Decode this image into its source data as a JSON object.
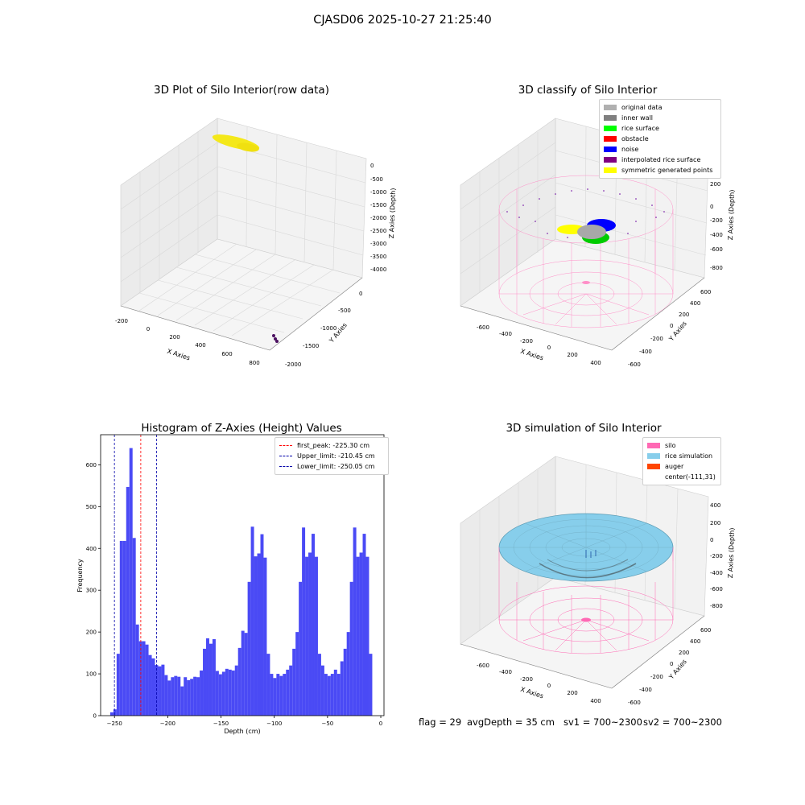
{
  "suptitle": "CJASD06 2025-10-27 21:25:40",
  "panels": {
    "raw": {
      "title": "3D Plot of Silo Interior(row data)",
      "xlabel": "X Axies",
      "ylabel": "Y Axies",
      "zlabel": "Z Axies (Depth)",
      "xticks": [
        "-200",
        "0",
        "200",
        "400",
        "600",
        "800"
      ],
      "yticks": [
        "0",
        "-500",
        "-1000",
        "-1500",
        "-2000"
      ],
      "zticks": [
        "0",
        "-500",
        "-1000",
        "-1500",
        "-2000",
        "-2500",
        "-3000",
        "-3500",
        "-4000"
      ]
    },
    "classify": {
      "title": "3D classify of Silo Interior",
      "xlabel": "X Axies",
      "ylabel": "Y Axies",
      "zlabel": "Z Axies (Depth)",
      "xticks": [
        "-600",
        "-400",
        "-200",
        "0",
        "200",
        "400"
      ],
      "yticks": [
        "600",
        "400",
        "200",
        "0",
        "-200",
        "-400",
        "-600"
      ],
      "zticks": [
        "200",
        "0",
        "-200",
        "-400",
        "-600",
        "-800"
      ],
      "legend": [
        {
          "label": "original data",
          "color": "#b0b0b0"
        },
        {
          "label": "inner wall",
          "color": "#808080"
        },
        {
          "label": "rice surface",
          "color": "#00ff00"
        },
        {
          "label": "obstacle",
          "color": "#ff0000"
        },
        {
          "label": "noise",
          "color": "#0000ff"
        },
        {
          "label": "interpolated rice surface",
          "color": "#800080"
        },
        {
          "label": "symmetric generated points",
          "color": "#ffff00"
        }
      ]
    },
    "simulation": {
      "title": "3D simulation of Silo Interior",
      "xlabel": "X Axies",
      "ylabel": "Y Axies",
      "zlabel": "Z Axies (Depth)",
      "xticks": [
        "-600",
        "-400",
        "-200",
        "0",
        "200",
        "400"
      ],
      "yticks": [
        "600",
        "400",
        "200",
        "0",
        "-200",
        "-400",
        "-600"
      ],
      "zticks": [
        "400",
        "200",
        "0",
        "-200",
        "-400",
        "-600",
        "-800"
      ],
      "legend": [
        {
          "label": "silo",
          "color": "#ff69b4"
        },
        {
          "label": "rice simulation",
          "color": "#87ceeb"
        },
        {
          "label": "auger",
          "color": "#ff4500"
        },
        {
          "label": "center(-111,31)",
          "color": ""
        }
      ]
    }
  },
  "status": {
    "flag": "flag = 29",
    "avg_depth": "avgDepth = 35 cm",
    "sv1": "sv1 = 700~2300",
    "sv2": "sv2 = 700~2300"
  },
  "colors": {
    "bars": "#4a4af5",
    "peak": "#ff0000",
    "limits": "#0000aa",
    "silo": "#ff69b4",
    "rice": "#87ceeb"
  },
  "chart_data": {
    "type": "bar",
    "title": "Histogram of Z-Axies (Height) Values",
    "xlabel": "Depth (cm)",
    "ylabel": "Frequency",
    "xlim": [
      -263,
      3
    ],
    "ylim": [
      0,
      672
    ],
    "xticks": [
      -250,
      -200,
      -150,
      -100,
      -50,
      0
    ],
    "yticks": [
      0,
      100,
      200,
      300,
      400,
      500,
      600
    ],
    "bin_edges": [
      -254,
      -251,
      -248,
      -245,
      -242,
      -239,
      -236,
      -233,
      -230,
      -227,
      -224,
      -221,
      -218,
      -215,
      -212,
      -209,
      -206,
      -203,
      -200,
      -197,
      -194,
      -191,
      -188,
      -185,
      -182,
      -179,
      -176,
      -173,
      -170,
      -167,
      -164,
      -161,
      -158,
      -155,
      -152,
      -149,
      -146,
      -143,
      -140,
      -137,
      -134,
      -131,
      -128,
      -125,
      -122,
      -119,
      -116,
      -113,
      -110,
      -107,
      -104,
      -101,
      -98,
      -95,
      -92,
      -89,
      -86,
      -83,
      -80,
      -77,
      -74,
      -71,
      -68,
      -65,
      -62,
      -59,
      -56,
      -53,
      -50,
      -47,
      -44,
      -41,
      -38,
      -35,
      -32,
      -29,
      -26,
      -23,
      -20,
      -17,
      -14,
      -11,
      -8
    ],
    "values": [
      8,
      15,
      148,
      418,
      418,
      547,
      640,
      425,
      218,
      178,
      178,
      170,
      145,
      137,
      121,
      118,
      122,
      97,
      84,
      92,
      95,
      93,
      70,
      92,
      85,
      88,
      93,
      92,
      108,
      160,
      185,
      172,
      183,
      107,
      99,
      105,
      112,
      110,
      108,
      120,
      162,
      203,
      198,
      320,
      452,
      381,
      388,
      434,
      378,
      148,
      100,
      90,
      100,
      95,
      100,
      110,
      120,
      160,
      200,
      320,
      450,
      380,
      390,
      435,
      380,
      148,
      120,
      100,
      95,
      100,
      110,
      100,
      130,
      160,
      200,
      320,
      450,
      380,
      390,
      435,
      380,
      148
    ],
    "legend": [
      {
        "label": "first_peak: -225.30 cm",
        "value": -225.3,
        "color": "#ff0000"
      },
      {
        "label": "Upper_limit: -210.45 cm",
        "value": -210.45,
        "color": "#0000aa"
      },
      {
        "label": "Lower_limit: -250.05 cm",
        "value": -250.05,
        "color": "#0000aa"
      }
    ]
  }
}
